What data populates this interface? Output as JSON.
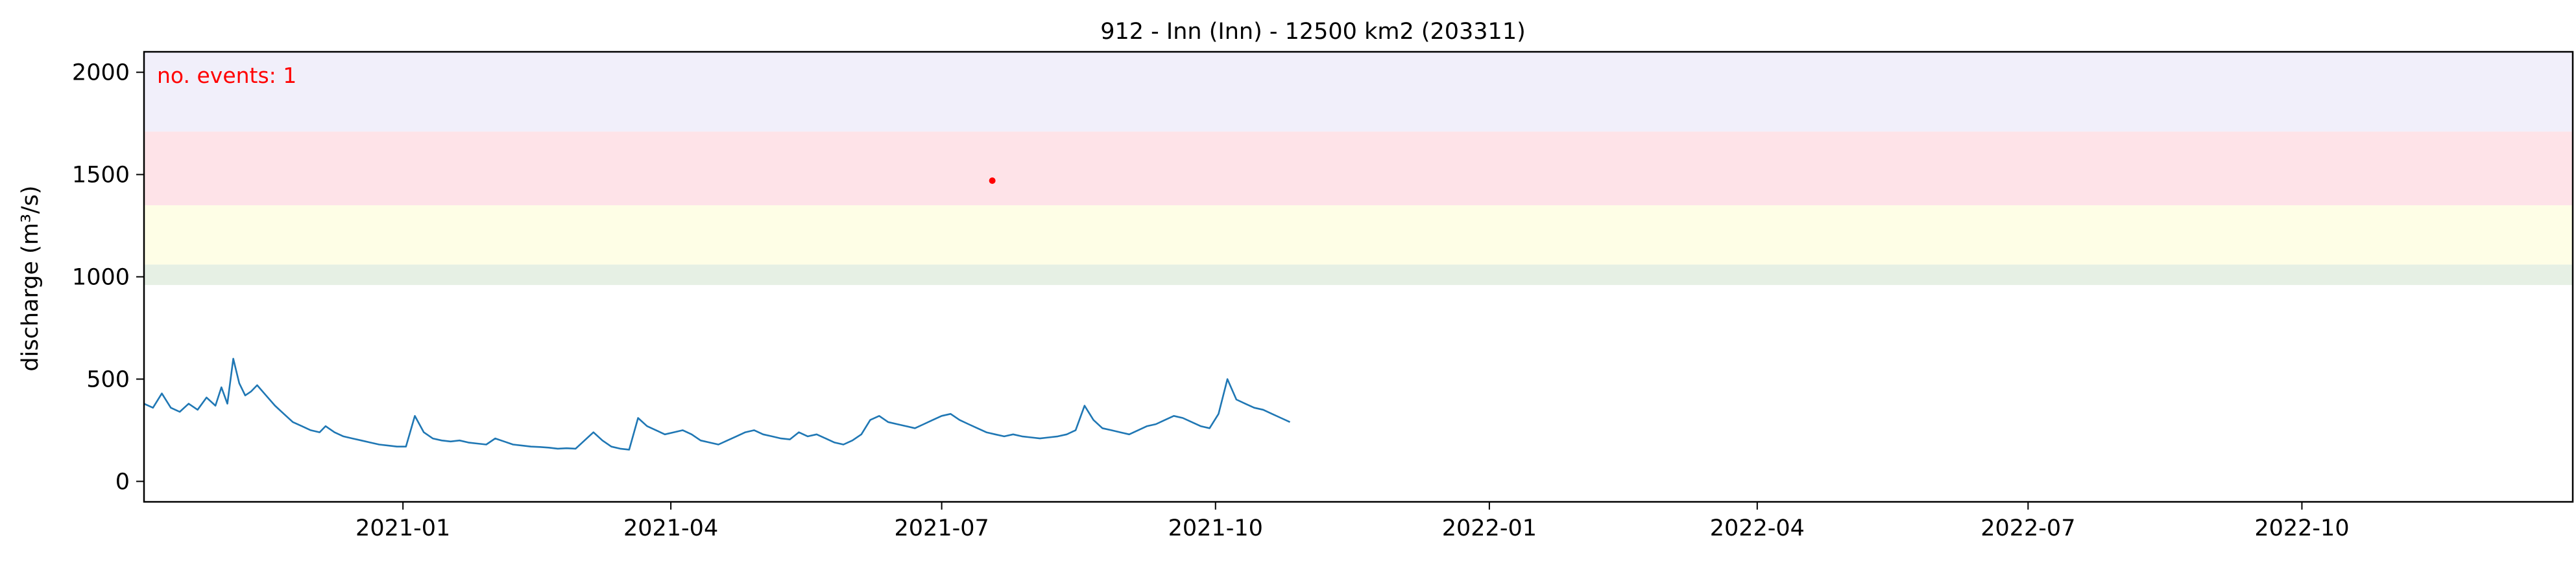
{
  "chart_data": {
    "type": "line",
    "title": "912 - Inn (Inn) - 12500 km2 (203311)",
    "ylabel": "discharge (m³/s)",
    "xlabel": "",
    "xlim": [
      "2020-10-06",
      "2022-12-31"
    ],
    "ylim": [
      -100,
      2100
    ],
    "xticks": [
      "2021-01",
      "2021-04",
      "2021-07",
      "2021-10",
      "2022-01",
      "2022-04",
      "2022-07",
      "2022-10"
    ],
    "yticks": [
      0,
      500,
      1000,
      1500,
      2000
    ],
    "annotation": {
      "text": "no. events: 1",
      "color": "#ff0000"
    },
    "threshold_bands": [
      {
        "from": 960,
        "to": 1060,
        "color": "#e6f0e4"
      },
      {
        "from": 1060,
        "to": 1350,
        "color": "#fefee6"
      },
      {
        "from": 1350,
        "to": 1710,
        "color": "#fee3e8"
      },
      {
        "from": 1710,
        "to": 2100,
        "color": "#f1effa"
      }
    ],
    "event_marker": {
      "x": "2021-07-18",
      "y": 1470,
      "color": "#ff0000"
    },
    "series": [
      {
        "color": "#1f77b4",
        "points": [
          [
            "2020-10-06",
            380
          ],
          [
            "2020-10-09",
            360
          ],
          [
            "2020-10-12",
            430
          ],
          [
            "2020-10-15",
            360
          ],
          [
            "2020-10-18",
            340
          ],
          [
            "2020-10-21",
            380
          ],
          [
            "2020-10-24",
            350
          ],
          [
            "2020-10-27",
            410
          ],
          [
            "2020-10-30",
            370
          ],
          [
            "2020-11-01",
            460
          ],
          [
            "2020-11-03",
            380
          ],
          [
            "2020-11-05",
            600
          ],
          [
            "2020-11-07",
            480
          ],
          [
            "2020-11-09",
            420
          ],
          [
            "2020-11-11",
            440
          ],
          [
            "2020-11-13",
            470
          ],
          [
            "2020-11-16",
            420
          ],
          [
            "2020-11-19",
            370
          ],
          [
            "2020-11-22",
            330
          ],
          [
            "2020-11-25",
            290
          ],
          [
            "2020-11-28",
            270
          ],
          [
            "2020-12-01",
            250
          ],
          [
            "2020-12-04",
            240
          ],
          [
            "2020-12-06",
            270
          ],
          [
            "2020-12-09",
            240
          ],
          [
            "2020-12-12",
            220
          ],
          [
            "2020-12-15",
            210
          ],
          [
            "2020-12-18",
            200
          ],
          [
            "2020-12-21",
            190
          ],
          [
            "2020-12-24",
            180
          ],
          [
            "2020-12-27",
            175
          ],
          [
            "2020-12-30",
            170
          ],
          [
            "2021-01-02",
            170
          ],
          [
            "2021-01-05",
            320
          ],
          [
            "2021-01-08",
            240
          ],
          [
            "2021-01-11",
            210
          ],
          [
            "2021-01-14",
            200
          ],
          [
            "2021-01-17",
            195
          ],
          [
            "2021-01-20",
            200
          ],
          [
            "2021-01-23",
            190
          ],
          [
            "2021-01-26",
            185
          ],
          [
            "2021-01-29",
            180
          ],
          [
            "2021-02-01",
            210
          ],
          [
            "2021-02-04",
            195
          ],
          [
            "2021-02-07",
            180
          ],
          [
            "2021-02-10",
            175
          ],
          [
            "2021-02-13",
            170
          ],
          [
            "2021-02-16",
            168
          ],
          [
            "2021-02-19",
            165
          ],
          [
            "2021-02-22",
            160
          ],
          [
            "2021-02-25",
            162
          ],
          [
            "2021-02-28",
            160
          ],
          [
            "2021-03-03",
            200
          ],
          [
            "2021-03-06",
            240
          ],
          [
            "2021-03-09",
            200
          ],
          [
            "2021-03-12",
            170
          ],
          [
            "2021-03-15",
            160
          ],
          [
            "2021-03-18",
            155
          ],
          [
            "2021-03-21",
            310
          ],
          [
            "2021-03-24",
            270
          ],
          [
            "2021-03-27",
            250
          ],
          [
            "2021-03-30",
            230
          ],
          [
            "2021-04-02",
            240
          ],
          [
            "2021-04-05",
            250
          ],
          [
            "2021-04-08",
            230
          ],
          [
            "2021-04-11",
            200
          ],
          [
            "2021-04-14",
            190
          ],
          [
            "2021-04-17",
            180
          ],
          [
            "2021-04-20",
            200
          ],
          [
            "2021-04-23",
            220
          ],
          [
            "2021-04-26",
            240
          ],
          [
            "2021-04-29",
            250
          ],
          [
            "2021-05-02",
            230
          ],
          [
            "2021-05-05",
            220
          ],
          [
            "2021-05-08",
            210
          ],
          [
            "2021-05-11",
            205
          ],
          [
            "2021-05-14",
            240
          ],
          [
            "2021-05-17",
            220
          ],
          [
            "2021-05-20",
            230
          ],
          [
            "2021-05-23",
            210
          ],
          [
            "2021-05-26",
            190
          ],
          [
            "2021-05-29",
            180
          ],
          [
            "2021-06-01",
            200
          ],
          [
            "2021-06-04",
            230
          ],
          [
            "2021-06-07",
            300
          ],
          [
            "2021-06-10",
            320
          ],
          [
            "2021-06-13",
            290
          ],
          [
            "2021-06-16",
            280
          ],
          [
            "2021-06-19",
            270
          ],
          [
            "2021-06-22",
            260
          ],
          [
            "2021-06-25",
            280
          ],
          [
            "2021-06-28",
            300
          ],
          [
            "2021-07-01",
            320
          ],
          [
            "2021-07-04",
            330
          ],
          [
            "2021-07-07",
            300
          ],
          [
            "2021-07-10",
            280
          ],
          [
            "2021-07-13",
            260
          ],
          [
            "2021-07-16",
            240
          ],
          [
            "2021-07-19",
            230
          ],
          [
            "2021-07-22",
            220
          ],
          [
            "2021-07-25",
            230
          ],
          [
            "2021-07-28",
            220
          ],
          [
            "2021-07-31",
            215
          ],
          [
            "2021-08-03",
            210
          ],
          [
            "2021-08-06",
            215
          ],
          [
            "2021-08-09",
            220
          ],
          [
            "2021-08-12",
            230
          ],
          [
            "2021-08-15",
            250
          ],
          [
            "2021-08-18",
            370
          ],
          [
            "2021-08-21",
            300
          ],
          [
            "2021-08-24",
            260
          ],
          [
            "2021-08-27",
            250
          ],
          [
            "2021-08-30",
            240
          ],
          [
            "2021-09-02",
            230
          ],
          [
            "2021-09-05",
            250
          ],
          [
            "2021-09-08",
            270
          ],
          [
            "2021-09-11",
            280
          ],
          [
            "2021-09-14",
            300
          ],
          [
            "2021-09-17",
            320
          ],
          [
            "2021-09-20",
            310
          ],
          [
            "2021-09-23",
            290
          ],
          [
            "2021-09-26",
            270
          ],
          [
            "2021-09-29",
            260
          ],
          [
            "2021-10-02",
            330
          ],
          [
            "2021-10-05",
            500
          ],
          [
            "2021-10-08",
            400
          ],
          [
            "2021-10-11",
            380
          ],
          [
            "2021-10-14",
            360
          ],
          [
            "2021-10-17",
            350
          ],
          [
            "2021-10-20",
            330
          ],
          [
            "2021-10-23",
            310
          ],
          [
            "2021-10-26",
            290
          ]
        ]
      }
    ]
  }
}
